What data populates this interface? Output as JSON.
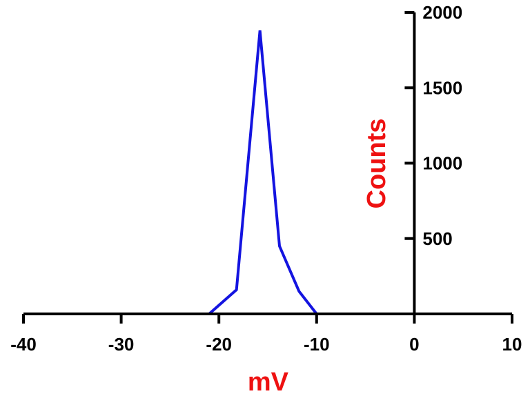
{
  "chart_data": {
    "type": "line",
    "title": "",
    "xlabel": "mV",
    "ylabel": "Counts",
    "xlim": [
      -40,
      10
    ],
    "ylim": [
      0,
      2000
    ],
    "x_ticks": [
      -40,
      -30,
      -20,
      -10,
      0,
      10
    ],
    "x_tick_labels": [
      "-40",
      "-30",
      "-20",
      "-10",
      "0",
      "10"
    ],
    "y_ticks": [
      500,
      1000,
      1500,
      2000
    ],
    "y_tick_labels": [
      "500",
      "1000",
      "1500",
      "2000"
    ],
    "y_axis_at_x": 0,
    "grid": false,
    "series": [
      {
        "color": "#1414e0",
        "x": [
          -40,
          -21,
          -18.2,
          -15.8,
          -13.8,
          -11.8,
          -10,
          0
        ],
        "y": [
          0,
          0,
          160,
          1880,
          450,
          150,
          0,
          0
        ]
      }
    ],
    "colors": {
      "axis_title": "#ee1111",
      "axes": "#000000",
      "line": "#1414e0"
    }
  }
}
